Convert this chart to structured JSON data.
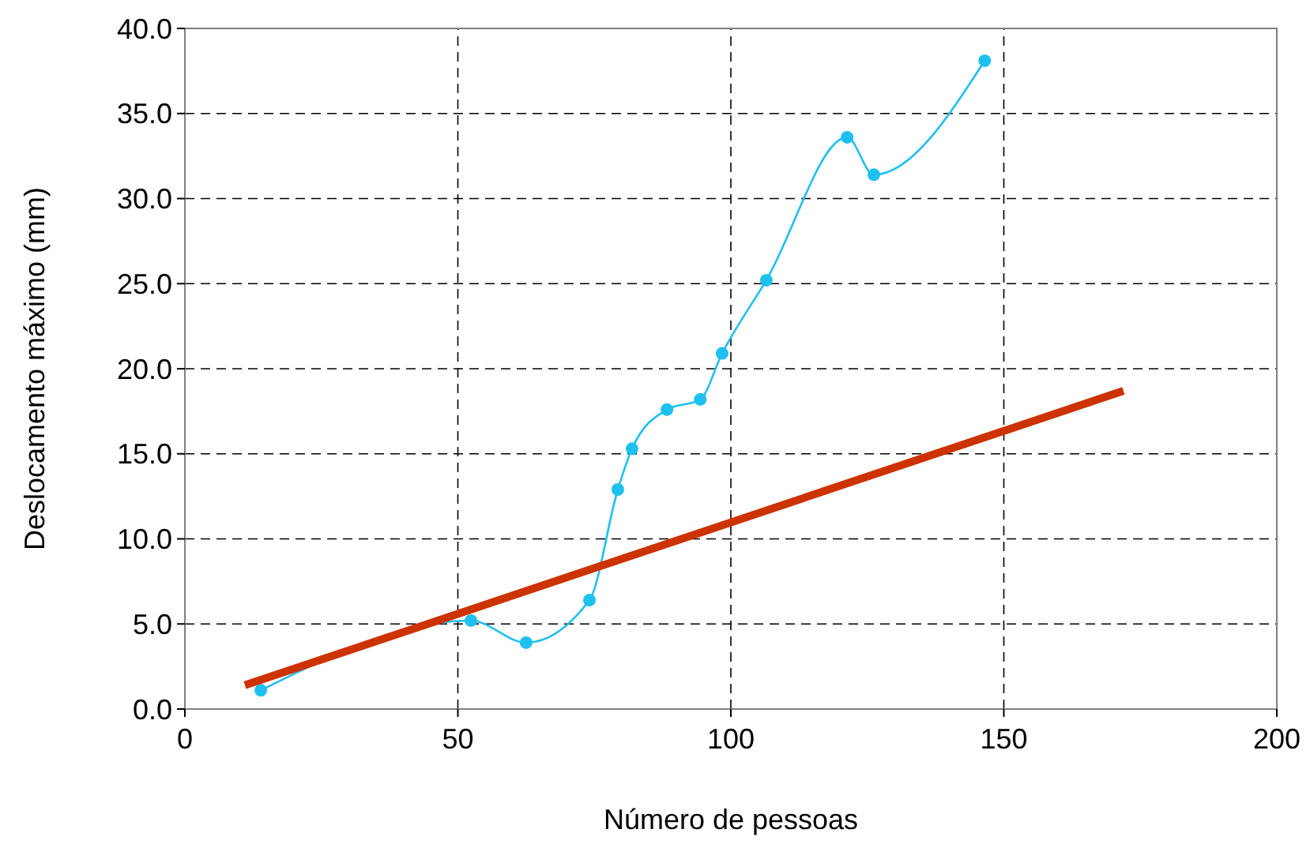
{
  "chart_data": {
    "type": "line",
    "xlabel": "Número de pessoas",
    "ylabel": "Deslocamento máximo (mm)",
    "xlim": [
      0,
      200
    ],
    "xticks": [
      0,
      50,
      100,
      150,
      200
    ],
    "ylim": [
      0,
      40
    ],
    "yticks": [
      {
        "value": 0,
        "label": "0.0"
      },
      {
        "value": 5,
        "label": "5.0"
      },
      {
        "value": 10,
        "label": "10.0"
      },
      {
        "value": 15,
        "label": "15.0"
      },
      {
        "value": 20,
        "label": "20.0"
      },
      {
        "value": 25,
        "label": "25.0"
      },
      {
        "value": 30,
        "label": "30.0"
      },
      {
        "value": 35,
        "label": "35.0"
      },
      {
        "value": 40,
        "label": "40.0"
      }
    ],
    "grid": true,
    "line_style": "solid",
    "series": [
      {
        "color": "#1ec0f0",
        "marker": "circle",
        "x": [
          13.9,
          52.4,
          62.5,
          74.1,
          79.3,
          81.9,
          88.3,
          94.4,
          98.4,
          106.5,
          121.3,
          126.2,
          146.5
        ],
        "values": [
          1.1,
          5.2,
          3.9,
          6.4,
          12.9,
          15.3,
          17.6,
          18.2,
          20.9,
          25.2,
          33.6,
          31.4,
          38.1
        ]
      },
      {
        "color": "#cc3300",
        "marker": "none",
        "x": [
          11,
          171.9
        ],
        "values": [
          1.4,
          18.7
        ]
      }
    ]
  }
}
